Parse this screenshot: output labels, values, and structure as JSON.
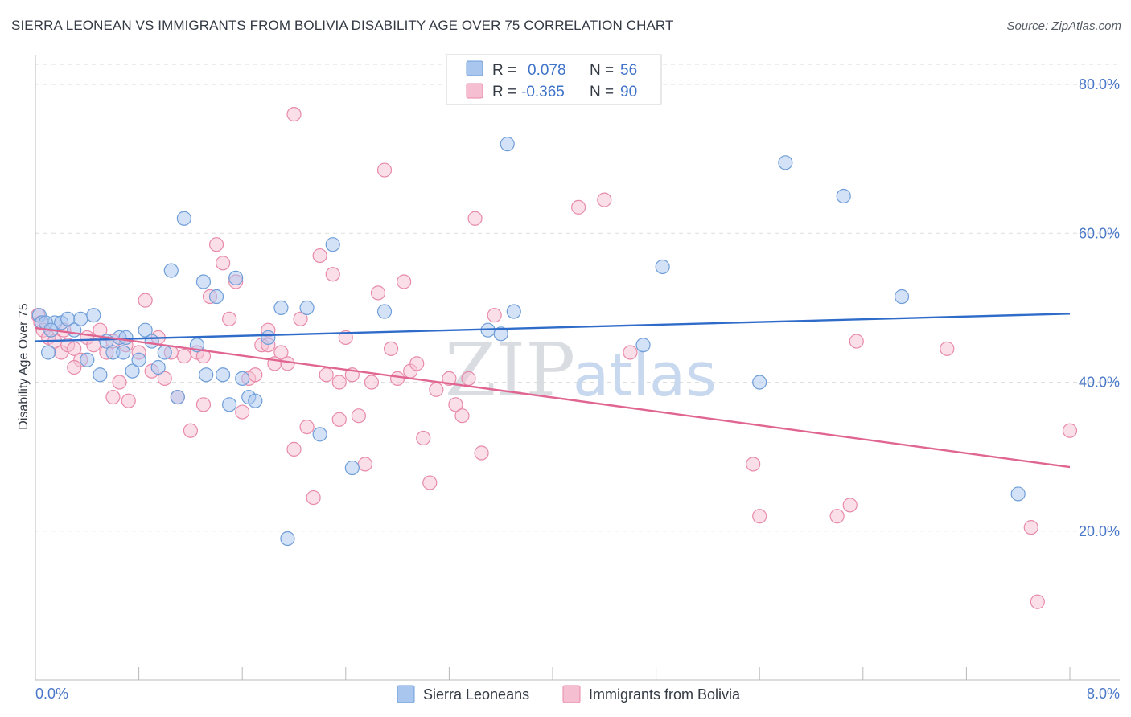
{
  "title": "SIERRA LEONEAN VS IMMIGRANTS FROM BOLIVIA DISABILITY AGE OVER 75 CORRELATION CHART",
  "source": "Source: ZipAtlas.com",
  "watermark": {
    "zip": "ZIP",
    "atlas": "atlas"
  },
  "colors": {
    "blue_fill": "#a9c6ef",
    "blue_stroke": "#6f9ed8",
    "blue_line": "#2f6cc9",
    "pink_fill": "#f6bfd1",
    "pink_stroke": "#e88aaa",
    "pink_line": "#e06591",
    "grid": "#dddddd",
    "tick_text": "#4a78c8"
  },
  "legend": {
    "rows": [
      {
        "r_label": "R =",
        "r_value": "0.078",
        "n_label": "N =",
        "n_value": "56"
      },
      {
        "r_label": "R =",
        "r_value": "-0.365",
        "n_label": "N =",
        "n_value": "90"
      }
    ]
  },
  "chart_data": {
    "type": "scatter",
    "title": "SIERRA LEONEAN VS IMMIGRANTS FROM BOLIVIA DISABILITY AGE OVER 75 CORRELATION CHART",
    "xlabel": "",
    "ylabel": "Disability Age Over 75",
    "xlim": [
      0,
      8
    ],
    "ylim": [
      0,
      84
    ],
    "x_tick_labels": [
      "0.0%",
      "8.0%"
    ],
    "y_ticks": [
      20,
      40,
      60,
      80
    ],
    "y_tick_labels": [
      "20.0%",
      "40.0%",
      "60.0%",
      "80.0%"
    ],
    "grid": true,
    "legend_position": "top-center",
    "series": [
      {
        "name": "Sierra Leoneans",
        "r": 0.078,
        "n": 56,
        "trend": {
          "x": [
            0,
            8
          ],
          "y": [
            45.5,
            49.2
          ]
        },
        "points": [
          [
            0.03,
            49
          ],
          [
            0.05,
            48
          ],
          [
            0.1,
            44
          ],
          [
            0.15,
            48
          ],
          [
            0.2,
            48
          ],
          [
            0.25,
            48.5
          ],
          [
            0.3,
            47
          ],
          [
            0.35,
            48.5
          ],
          [
            0.4,
            43
          ],
          [
            0.45,
            49
          ],
          [
            0.5,
            41
          ],
          [
            0.55,
            45.5
          ],
          [
            0.6,
            44
          ],
          [
            0.65,
            46
          ],
          [
            0.7,
            46
          ],
          [
            0.75,
            41.5
          ],
          [
            0.8,
            43
          ],
          [
            0.85,
            47
          ],
          [
            0.9,
            45.5
          ],
          [
            0.95,
            42
          ],
          [
            1.0,
            44
          ],
          [
            1.05,
            55
          ],
          [
            1.1,
            38
          ],
          [
            1.15,
            62
          ],
          [
            1.25,
            45
          ],
          [
            1.3,
            53.5
          ],
          [
            1.4,
            51.5
          ],
          [
            1.45,
            41
          ],
          [
            1.5,
            37
          ],
          [
            1.55,
            54
          ],
          [
            1.6,
            40.5
          ],
          [
            1.65,
            38
          ],
          [
            1.7,
            37.5
          ],
          [
            1.8,
            46
          ],
          [
            1.9,
            50
          ],
          [
            1.95,
            19
          ],
          [
            2.1,
            50
          ],
          [
            2.2,
            33
          ],
          [
            2.3,
            58.5
          ],
          [
            2.45,
            28.5
          ],
          [
            2.7,
            49.5
          ],
          [
            3.5,
            47
          ],
          [
            3.6,
            46.5
          ],
          [
            3.65,
            72
          ],
          [
            3.7,
            49.5
          ],
          [
            4.7,
            45
          ],
          [
            4.85,
            55.5
          ],
          [
            5.6,
            40
          ],
          [
            5.8,
            69.5
          ],
          [
            6.25,
            65
          ],
          [
            6.7,
            51.5
          ],
          [
            7.6,
            25
          ],
          [
            0.08,
            48
          ],
          [
            0.12,
            47
          ],
          [
            0.68,
            44
          ],
          [
            1.32,
            41
          ]
        ]
      },
      {
        "name": "Immigrants from Bolivia",
        "r": -0.365,
        "n": 90,
        "trend": {
          "x": [
            0,
            8
          ],
          "y": [
            47.3,
            28.6
          ]
        },
        "points": [
          [
            0.02,
            49
          ],
          [
            0.04,
            48
          ],
          [
            0.06,
            47
          ],
          [
            0.1,
            46
          ],
          [
            0.15,
            45.5
          ],
          [
            0.2,
            44
          ],
          [
            0.22,
            47
          ],
          [
            0.25,
            45
          ],
          [
            0.3,
            44.5
          ],
          [
            0.35,
            43
          ],
          [
            0.4,
            46
          ],
          [
            0.45,
            45
          ],
          [
            0.5,
            47
          ],
          [
            0.55,
            44
          ],
          [
            0.6,
            45.5
          ],
          [
            0.65,
            40
          ],
          [
            0.7,
            45
          ],
          [
            0.72,
            37.5
          ],
          [
            0.8,
            44
          ],
          [
            0.85,
            51
          ],
          [
            0.9,
            41.5
          ],
          [
            0.95,
            46
          ],
          [
            1.0,
            40.5
          ],
          [
            1.05,
            44
          ],
          [
            1.1,
            38
          ],
          [
            1.15,
            43.5
          ],
          [
            1.2,
            33.5
          ],
          [
            1.25,
            44
          ],
          [
            1.3,
            43.5
          ],
          [
            1.35,
            51.5
          ],
          [
            1.4,
            58.5
          ],
          [
            1.45,
            56
          ],
          [
            1.5,
            48.5
          ],
          [
            1.55,
            53.5
          ],
          [
            1.6,
            36
          ],
          [
            1.65,
            40.5
          ],
          [
            1.7,
            41
          ],
          [
            1.75,
            45
          ],
          [
            1.8,
            47
          ],
          [
            1.85,
            42.5
          ],
          [
            1.9,
            44
          ],
          [
            1.95,
            42.5
          ],
          [
            2.0,
            31
          ],
          [
            2.05,
            48.5
          ],
          [
            2.1,
            34
          ],
          [
            2.15,
            24.5
          ],
          [
            2.2,
            57
          ],
          [
            2.25,
            41
          ],
          [
            2.3,
            54.5
          ],
          [
            2.35,
            35
          ],
          [
            2.4,
            46
          ],
          [
            2.45,
            41
          ],
          [
            2.5,
            35.5
          ],
          [
            2.55,
            29
          ],
          [
            2.6,
            40
          ],
          [
            2.65,
            52
          ],
          [
            2.7,
            68.5
          ],
          [
            2.75,
            44.5
          ],
          [
            2.8,
            40.5
          ],
          [
            2.85,
            53.5
          ],
          [
            2.9,
            41.5
          ],
          [
            2.95,
            42.5
          ],
          [
            3.0,
            32.5
          ],
          [
            3.05,
            26.5
          ],
          [
            3.1,
            39
          ],
          [
            3.2,
            40.5
          ],
          [
            3.25,
            37
          ],
          [
            3.3,
            35.5
          ],
          [
            3.35,
            40.5
          ],
          [
            3.4,
            62
          ],
          [
            3.45,
            30.5
          ],
          [
            3.55,
            49
          ],
          [
            2.0,
            76
          ],
          [
            4.2,
            63.5
          ],
          [
            4.4,
            64.5
          ],
          [
            4.6,
            44
          ],
          [
            5.55,
            29
          ],
          [
            5.6,
            22
          ],
          [
            6.2,
            22
          ],
          [
            6.3,
            23.5
          ],
          [
            6.35,
            45.5
          ],
          [
            7.05,
            44.5
          ],
          [
            7.7,
            20.5
          ],
          [
            7.75,
            10.5
          ],
          [
            8.0,
            33.5
          ],
          [
            1.8,
            45
          ],
          [
            0.3,
            42
          ],
          [
            0.6,
            38
          ],
          [
            1.3,
            37
          ],
          [
            2.35,
            40
          ]
        ]
      }
    ]
  }
}
